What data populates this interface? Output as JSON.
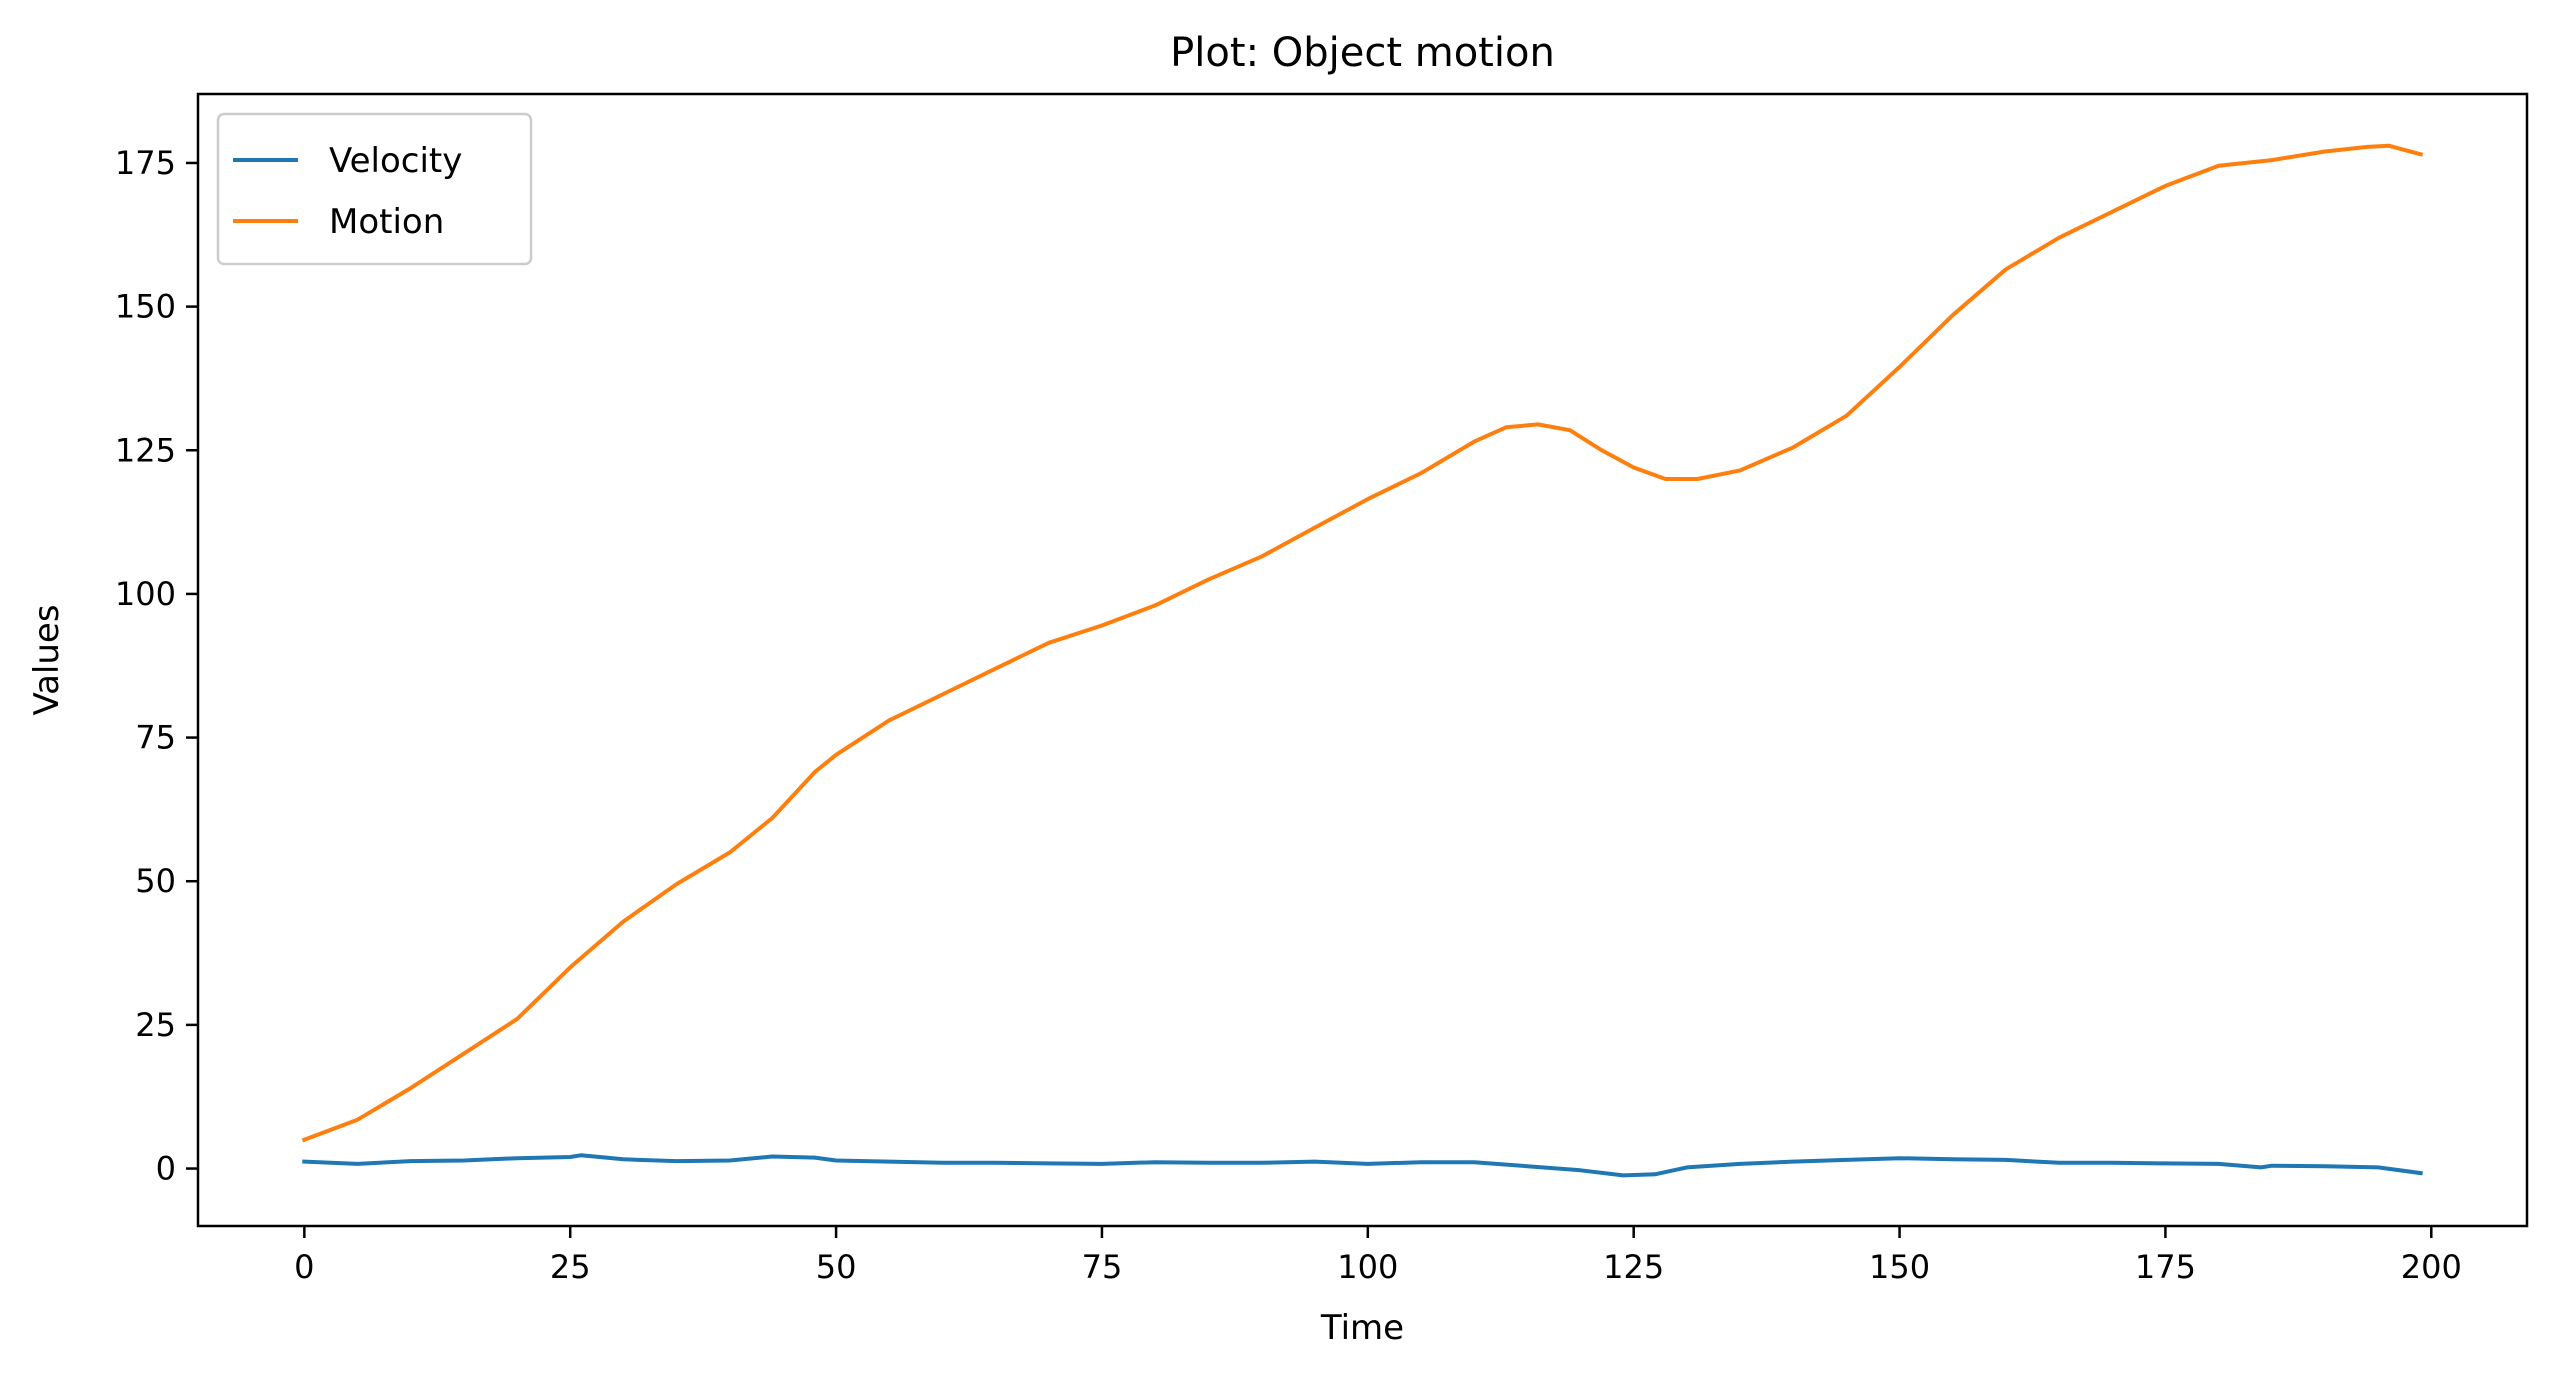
{
  "chart_data": {
    "type": "line",
    "title": "Plot: Object motion",
    "xlabel": "Time",
    "ylabel": "Values",
    "xlim": [
      -10,
      209
    ],
    "ylim": [
      -10,
      187
    ],
    "xticks": [
      0,
      25,
      50,
      75,
      100,
      125,
      150,
      175,
      200
    ],
    "yticks": [
      0,
      25,
      50,
      75,
      100,
      125,
      150,
      175
    ],
    "grid": false,
    "legend_position": "top-left",
    "series": [
      {
        "name": "Velocity",
        "color": "#1f77b4",
        "points": [
          [
            0,
            1.2
          ],
          [
            5,
            0.8
          ],
          [
            10,
            1.3
          ],
          [
            15,
            1.4
          ],
          [
            20,
            1.8
          ],
          [
            25,
            2.0
          ],
          [
            26,
            2.3
          ],
          [
            30,
            1.6
          ],
          [
            35,
            1.3
          ],
          [
            40,
            1.4
          ],
          [
            44,
            2.1
          ],
          [
            48,
            1.9
          ],
          [
            50,
            1.4
          ],
          [
            55,
            1.2
          ],
          [
            60,
            1.0
          ],
          [
            65,
            1.0
          ],
          [
            70,
            0.9
          ],
          [
            75,
            0.8
          ],
          [
            80,
            1.1
          ],
          [
            85,
            1.0
          ],
          [
            90,
            1.0
          ],
          [
            95,
            1.2
          ],
          [
            100,
            0.8
          ],
          [
            105,
            1.1
          ],
          [
            110,
            1.1
          ],
          [
            115,
            0.4
          ],
          [
            120,
            -0.3
          ],
          [
            124,
            -1.2
          ],
          [
            127,
            -1.0
          ],
          [
            130,
            0.2
          ],
          [
            135,
            0.8
          ],
          [
            140,
            1.2
          ],
          [
            145,
            1.5
          ],
          [
            150,
            1.8
          ],
          [
            155,
            1.6
          ],
          [
            160,
            1.5
          ],
          [
            165,
            1.0
          ],
          [
            170,
            1.0
          ],
          [
            175,
            0.9
          ],
          [
            180,
            0.8
          ],
          [
            184,
            0.2
          ],
          [
            185,
            0.5
          ],
          [
            190,
            0.4
          ],
          [
            195,
            0.2
          ],
          [
            199,
            -0.8
          ]
        ]
      },
      {
        "name": "Motion",
        "color": "#ff7f0e",
        "points": [
          [
            0,
            5
          ],
          [
            5,
            8.5
          ],
          [
            10,
            14
          ],
          [
            15,
            20
          ],
          [
            20,
            26
          ],
          [
            25,
            35
          ],
          [
            30,
            43
          ],
          [
            35,
            49.5
          ],
          [
            40,
            55
          ],
          [
            44,
            61
          ],
          [
            48,
            69
          ],
          [
            50,
            72
          ],
          [
            55,
            78
          ],
          [
            60,
            82.5
          ],
          [
            65,
            87
          ],
          [
            70,
            91.5
          ],
          [
            75,
            94.5
          ],
          [
            80,
            98
          ],
          [
            85,
            102.5
          ],
          [
            90,
            106.5
          ],
          [
            95,
            111.5
          ],
          [
            100,
            116.5
          ],
          [
            105,
            121
          ],
          [
            110,
            126.5
          ],
          [
            113,
            129
          ],
          [
            116,
            129.5
          ],
          [
            119,
            128.5
          ],
          [
            122,
            125
          ],
          [
            125,
            122
          ],
          [
            128,
            120
          ],
          [
            131,
            120
          ],
          [
            135,
            121.5
          ],
          [
            140,
            125.5
          ],
          [
            145,
            131
          ],
          [
            150,
            139.5
          ],
          [
            155,
            148.5
          ],
          [
            160,
            156.5
          ],
          [
            165,
            162
          ],
          [
            170,
            166.5
          ],
          [
            175,
            171
          ],
          [
            180,
            174.5
          ],
          [
            185,
            175.5
          ],
          [
            190,
            177
          ],
          [
            194,
            177.8
          ],
          [
            196,
            178
          ],
          [
            199,
            176.5
          ]
        ]
      }
    ]
  }
}
